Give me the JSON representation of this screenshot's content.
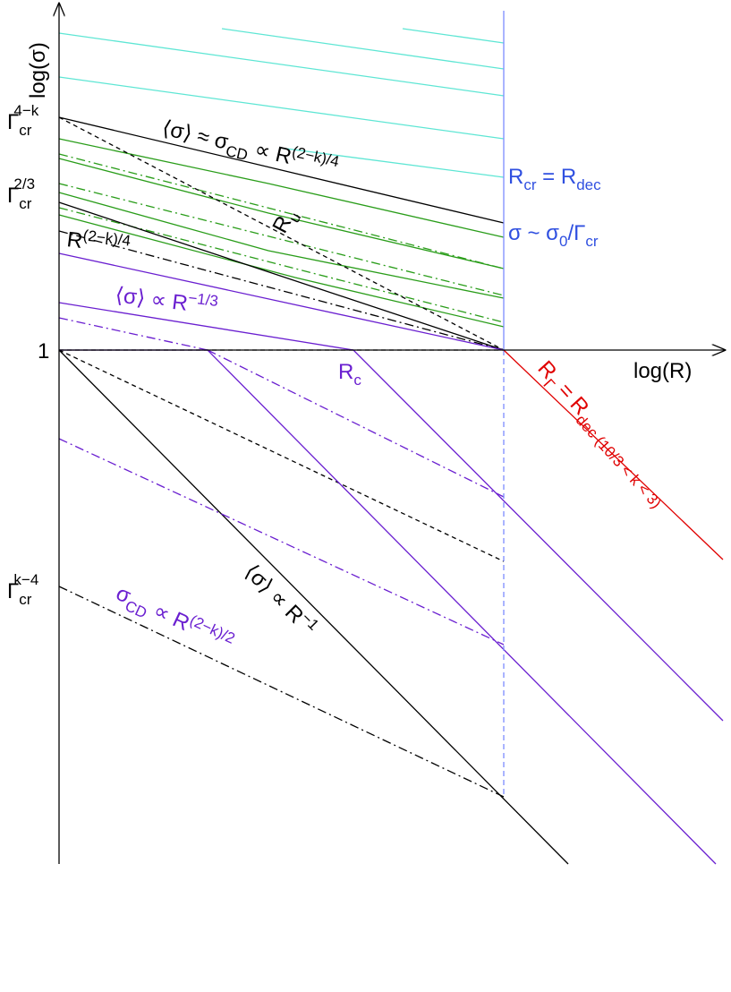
{
  "axes": {
    "y_label": "log(σ)",
    "x_label": "log(R)"
  },
  "y_labels": [
    {
      "parts": [
        "Γ",
        "cr",
        "4−k"
      ]
    },
    {
      "parts": [
        "Γ",
        "cr",
        "2/3"
      ]
    },
    {
      "parts": [
        "1"
      ]
    },
    {
      "parts": [
        "Γ",
        "cr",
        "k−4"
      ]
    }
  ],
  "annotations": [
    {
      "parts": [
        "⟨σ⟩ ≈ σ",
        "CD",
        " ∝ R",
        "(2−k)/4"
      ]
    },
    {
      "parts": [
        "R",
        "u"
      ]
    },
    {
      "parts": [
        "R",
        "(2−k)/4"
      ]
    },
    {
      "parts": [
        "⟨σ⟩ ∝ R",
        "−1/3"
      ]
    },
    {
      "parts": [
        "R",
        "c"
      ]
    },
    {
      "parts": [
        "R",
        "cr",
        " = R",
        "dec"
      ]
    },
    {
      "parts": [
        "σ ~ σ",
        "0",
        "/Γ",
        "cr"
      ]
    },
    {
      "parts": [
        "R",
        "Γ",
        " = R",
        "dec",
        " (10/3 < k < 3)"
      ]
    },
    {
      "parts": [
        "⟨σ⟩ ∝ R",
        "−1"
      ]
    },
    {
      "parts": [
        "σ",
        "CD",
        " ∝ R",
        "(2−k)/2"
      ]
    }
  ]
}
